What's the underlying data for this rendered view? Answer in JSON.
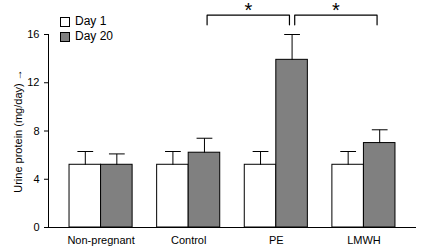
{
  "chart_data": {
    "type": "bar",
    "categories": [
      "Non-pregnant",
      "Control",
      "PE",
      "LMWH"
    ],
    "series": [
      {
        "name": "Day 1",
        "color": "#ffffff",
        "values": [
          5.2,
          5.2,
          5.2,
          5.2
        ],
        "errors": [
          1.1,
          1.1,
          1.1,
          1.1
        ]
      },
      {
        "name": "Day 20",
        "color": "#808080",
        "values": [
          5.2,
          6.2,
          13.9,
          7.0
        ],
        "errors": [
          0.9,
          1.2,
          2.1,
          1.1
        ]
      }
    ],
    "y_label": "Urine protein (mg/day)",
    "ylim": [
      0,
      16
    ],
    "yticks": [
      0,
      4,
      8,
      12,
      16
    ],
    "grid": false,
    "legend": "top-left",
    "annotations": [
      {
        "text": "*",
        "from": "Control",
        "to": "PE",
        "series": "Day 20"
      },
      {
        "text": "*",
        "from": "PE",
        "to": "LMWH",
        "series": "Day 20"
      }
    ]
  }
}
